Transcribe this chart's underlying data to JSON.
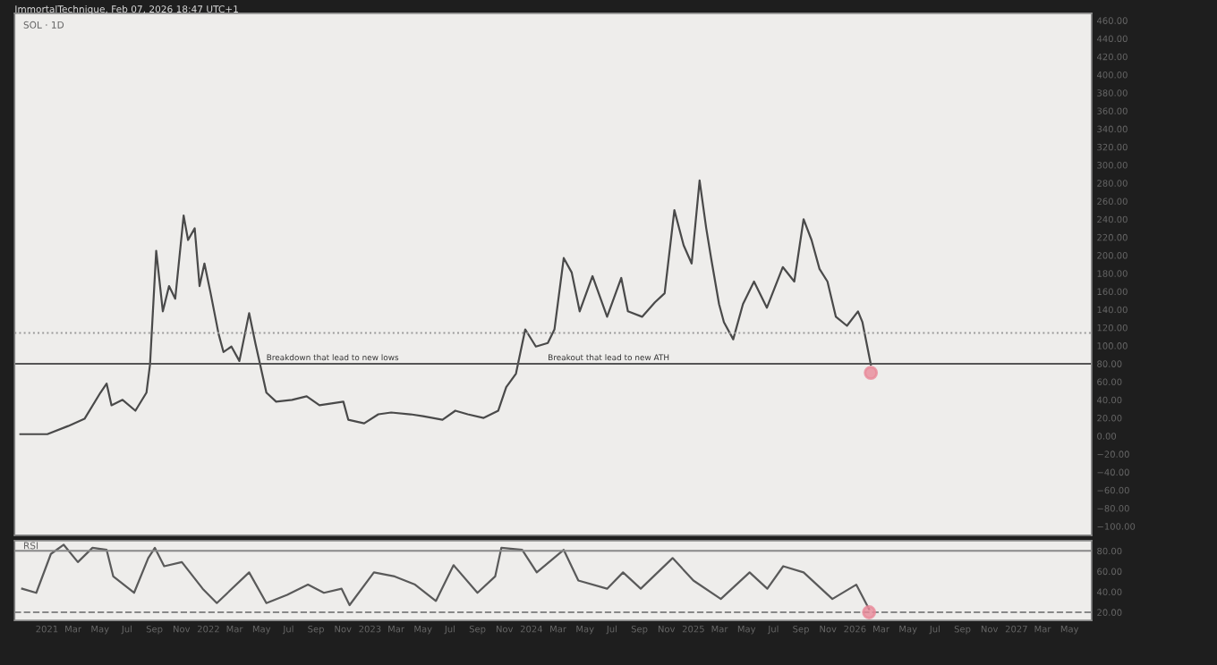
{
  "chart_data": [
    {
      "type": "line",
      "title": "SOL · 1D",
      "annotations": [
        "ImmortalTechnique, Feb 07, 2026 18:47 UTC+1",
        {
          "text": "Breakdown that lead to new lows",
          "x": "2022-05-12",
          "y": 80
        },
        {
          "text": "Breakout that lead to new ATH",
          "x": "2024-02-07",
          "y": 80
        }
      ],
      "series": [
        {
          "color": "#4a4a4a",
          "x": [
            "2020-11-02",
            "2021-01-02",
            "2021-02-18",
            "2021-03-27",
            "2021-05-02",
            "2021-05-16",
            "2021-05-27",
            "2021-06-21",
            "2021-07-20",
            "2021-08-14",
            "2021-08-22",
            "2021-09-05",
            "2021-09-20",
            "2021-10-04",
            "2021-10-18",
            "2021-11-06",
            "2021-11-16",
            "2021-12-01",
            "2021-12-12",
            "2021-12-23",
            "2022-01-06",
            "2022-01-24",
            "2022-02-04",
            "2022-02-22",
            "2022-03-12",
            "2022-04-03",
            "2022-04-17",
            "2022-05-12",
            "2022-06-03",
            "2022-07-09",
            "2022-08-11",
            "2022-09-09",
            "2022-11-02",
            "2022-11-13",
            "2022-12-19",
            "2023-01-20",
            "2023-02-18",
            "2023-04-03",
            "2023-05-01",
            "2023-06-14",
            "2023-07-13",
            "2023-08-10",
            "2023-09-15",
            "2023-10-18",
            "2023-11-05",
            "2023-11-27",
            "2023-12-18",
            "2024-01-11",
            "2024-02-07",
            "2024-02-22",
            "2024-03-14",
            "2024-04-01",
            "2024-04-19",
            "2024-05-18",
            "2024-06-20",
            "2024-07-22",
            "2024-08-06",
            "2024-09-07",
            "2024-10-06",
            "2024-10-28",
            "2024-11-19",
            "2024-12-10",
            "2024-12-28",
            "2025-01-15",
            "2025-01-30",
            "2025-02-10",
            "2025-02-28",
            "2025-03-11",
            "2025-04-01",
            "2025-04-23",
            "2025-05-18",
            "2025-06-16",
            "2025-07-22",
            "2025-08-17",
            "2025-09-07",
            "2025-09-25",
            "2025-10-13",
            "2025-10-31",
            "2025-11-19",
            "2025-12-14",
            "2026-01-08",
            "2026-01-18",
            "2026-02-06"
          ],
          "values": [
            2,
            2,
            11,
            19,
            48,
            58,
            34,
            40,
            28,
            48,
            79,
            205,
            138,
            166,
            152,
            244,
            217,
            230,
            166,
            191,
            158,
            113,
            93,
            99,
            83,
            136,
            103,
            48,
            38,
            40,
            44,
            34,
            38,
            18,
            14,
            24,
            26,
            24,
            22,
            18,
            28,
            24,
            20,
            28,
            54,
            69,
            118,
            99,
            103,
            118,
            197,
            181,
            138,
            177,
            132,
            175,
            138,
            132,
            148,
            158,
            250,
            211,
            191,
            283,
            230,
            197,
            146,
            126,
            107,
            146,
            171,
            142,
            187,
            171,
            240,
            217,
            185,
            171,
            132,
            122,
            138,
            126,
            79
          ]
        },
        {
          "type": "scatter",
          "color": "#e88a9a",
          "x": [
            "2026-02-06"
          ],
          "values": [
            70
          ]
        }
      ],
      "xlim": [
        "2020-10-20",
        "2027-06-20"
      ],
      "ylim": [
        -110,
        468
      ],
      "yticks": [
        {
          "value": -100,
          "label": "−100.00"
        },
        {
          "value": -80,
          "label": "−80.00"
        },
        {
          "value": -60,
          "label": "−60.00"
        },
        {
          "value": -40,
          "label": "−40.00"
        },
        {
          "value": -20,
          "label": "−20.00"
        },
        {
          "value": 0,
          "label": "0.00"
        },
        {
          "value": 20,
          "label": "20.00"
        },
        {
          "value": 40,
          "label": "40.00"
        },
        {
          "value": 60,
          "label": "60.00"
        },
        {
          "value": 80,
          "label": "80.00"
        },
        {
          "value": 100,
          "label": "100.00"
        },
        {
          "value": 120,
          "label": "120.00"
        },
        {
          "value": 140,
          "label": "140.00"
        },
        {
          "value": 160,
          "label": "160.00"
        },
        {
          "value": 180,
          "label": "180.00"
        },
        {
          "value": 200,
          "label": "200.00"
        },
        {
          "value": 220,
          "label": "220.00"
        },
        {
          "value": 240,
          "label": "240.00"
        },
        {
          "value": 260,
          "label": "260.00"
        },
        {
          "value": 280,
          "label": "280.00"
        },
        {
          "value": 300,
          "label": "300.00"
        },
        {
          "value": 320,
          "label": "320.00"
        },
        {
          "value": 340,
          "label": "340.00"
        },
        {
          "value": 360,
          "label": "360.00"
        },
        {
          "value": 380,
          "label": "380.00"
        },
        {
          "value": 400,
          "label": "400.00"
        },
        {
          "value": 420,
          "label": "420.00"
        },
        {
          "value": 440,
          "label": "440.00"
        },
        {
          "value": 460,
          "label": "460.00"
        }
      ],
      "ref_lines": [
        {
          "axis": "y",
          "value": 80,
          "color": "#555555",
          "line_style": "solid"
        },
        {
          "axis": "y",
          "value": 114,
          "color": "#999999",
          "line_style": "dotted"
        }
      ],
      "tick_labels": "y",
      "grid": false
    },
    {
      "type": "line",
      "title": "RSI",
      "series": [
        {
          "color": "#5a5a5a",
          "x": [
            "2020-11-06",
            "2020-12-08",
            "2021-01-10",
            "2021-02-08",
            "2021-03-12",
            "2021-04-14",
            "2021-05-16",
            "2021-05-31",
            "2021-07-17",
            "2021-08-18",
            "2021-09-02",
            "2021-09-23",
            "2021-11-02",
            "2021-12-19",
            "2022-01-20",
            "2022-04-03",
            "2022-05-12",
            "2022-06-28",
            "2022-08-14",
            "2022-09-19",
            "2022-10-29",
            "2022-11-16",
            "2023-01-10",
            "2023-02-26",
            "2023-04-13",
            "2023-05-30",
            "2023-07-09",
            "2023-09-01",
            "2023-10-11",
            "2023-10-25",
            "2023-12-11",
            "2024-01-13",
            "2024-03-14",
            "2024-04-16",
            "2024-06-20",
            "2024-07-26",
            "2024-09-04",
            "2024-11-15",
            "2025-01-01",
            "2025-03-04",
            "2025-05-08",
            "2025-06-17",
            "2025-07-23",
            "2025-09-07",
            "2025-11-11",
            "2026-01-04",
            "2026-02-02"
          ],
          "values": [
            43,
            39,
            77,
            86,
            69,
            83,
            81,
            55,
            39,
            73,
            83,
            65,
            69,
            43,
            29,
            59,
            29,
            37,
            47,
            39,
            43,
            27,
            59,
            55,
            47,
            31,
            66,
            39,
            55,
            83,
            81,
            59,
            81,
            51,
            43,
            59,
            43,
            73,
            51,
            33,
            59,
            43,
            65,
            59,
            33,
            47,
            23
          ]
        },
        {
          "type": "scatter",
          "color": "#e88a9a",
          "x": [
            "2026-02-02"
          ],
          "values": [
            20
          ]
        }
      ],
      "xlim": [
        "2020-10-20",
        "2027-06-20"
      ],
      "xticks": [
        {
          "value": "2021-01-01",
          "label": "2021"
        },
        {
          "value": "2021-03-01",
          "label": "Mar"
        },
        {
          "value": "2021-05-01",
          "label": "May"
        },
        {
          "value": "2021-07-01",
          "label": "Jul"
        },
        {
          "value": "2021-09-01",
          "label": "Sep"
        },
        {
          "value": "2021-11-01",
          "label": "Nov"
        },
        {
          "value": "2022-01-01",
          "label": "2022"
        },
        {
          "value": "2022-03-01",
          "label": "Mar"
        },
        {
          "value": "2022-05-01",
          "label": "May"
        },
        {
          "value": "2022-07-01",
          "label": "Jul"
        },
        {
          "value": "2022-09-01",
          "label": "Sep"
        },
        {
          "value": "2022-11-01",
          "label": "Nov"
        },
        {
          "value": "2023-01-01",
          "label": "2023"
        },
        {
          "value": "2023-03-01",
          "label": "Mar"
        },
        {
          "value": "2023-05-01",
          "label": "May"
        },
        {
          "value": "2023-07-01",
          "label": "Jul"
        },
        {
          "value": "2023-09-01",
          "label": "Sep"
        },
        {
          "value": "2023-11-01",
          "label": "Nov"
        },
        {
          "value": "2024-01-01",
          "label": "2024"
        },
        {
          "value": "2024-03-01",
          "label": "Mar"
        },
        {
          "value": "2024-05-01",
          "label": "May"
        },
        {
          "value": "2024-07-01",
          "label": "Jul"
        },
        {
          "value": "2024-09-01",
          "label": "Sep"
        },
        {
          "value": "2024-11-01",
          "label": "Nov"
        },
        {
          "value": "2025-01-01",
          "label": "2025"
        },
        {
          "value": "2025-03-01",
          "label": "Mar"
        },
        {
          "value": "2025-05-01",
          "label": "May"
        },
        {
          "value": "2025-07-01",
          "label": "Jul"
        },
        {
          "value": "2025-09-01",
          "label": "Sep"
        },
        {
          "value": "2025-11-01",
          "label": "Nov"
        },
        {
          "value": "2026-01-01",
          "label": "2026"
        },
        {
          "value": "2026-03-01",
          "label": "Mar"
        },
        {
          "value": "2026-05-01",
          "label": "May"
        },
        {
          "value": "2026-07-01",
          "label": "Jul"
        },
        {
          "value": "2026-09-01",
          "label": "Sep"
        },
        {
          "value": "2026-11-01",
          "label": "Nov"
        },
        {
          "value": "2027-01-01",
          "label": "2027"
        },
        {
          "value": "2027-03-01",
          "label": "Mar"
        },
        {
          "value": "2027-05-01",
          "label": "May"
        }
      ],
      "ylim": [
        12,
        90
      ],
      "yticks": [
        {
          "value": 20,
          "label": "20.00"
        },
        {
          "value": 40,
          "label": "40.00"
        },
        {
          "value": 60,
          "label": "60.00"
        },
        {
          "value": 80,
          "label": "80.00"
        }
      ],
      "ref_lines": [
        {
          "axis": "y",
          "value": 80,
          "color": "#888888",
          "line_style": "solid"
        },
        {
          "axis": "y",
          "value": 20,
          "color": "#888888",
          "line_style": "dashed"
        }
      ],
      "grid": false
    }
  ]
}
